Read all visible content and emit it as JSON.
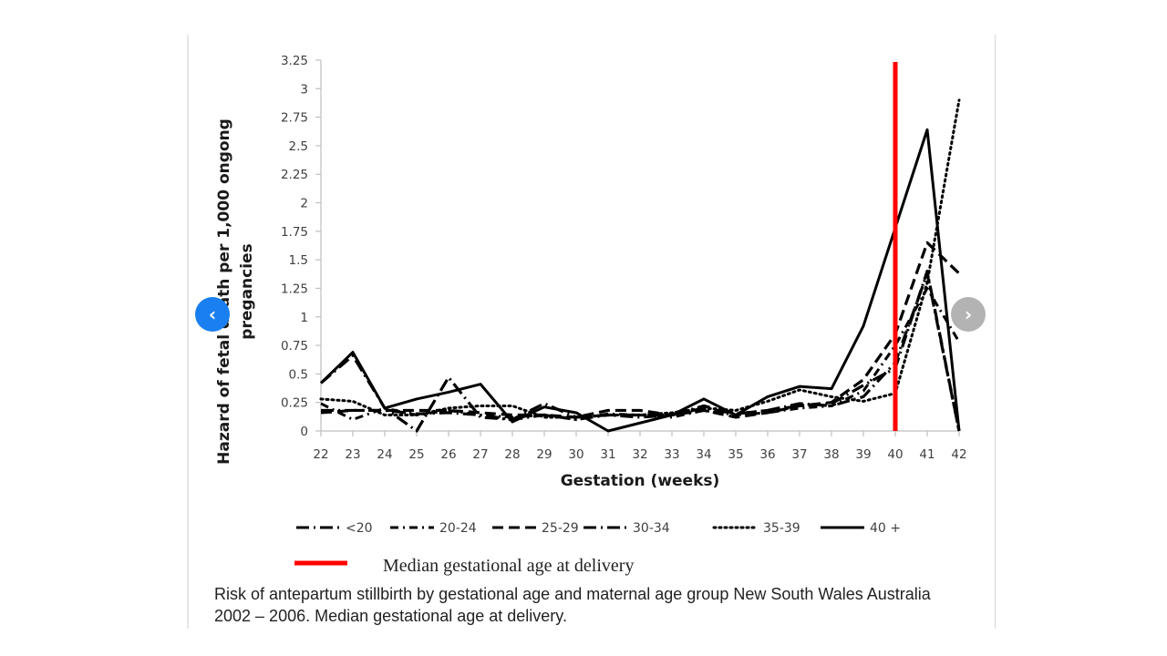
{
  "navigation": {
    "prev_icon": "‹",
    "next_icon": "›"
  },
  "caption": "Risk of antepartum stillbirth by gestational age and maternal age group New South Wales Australia 2002 – 2006. Median gestational age at delivery.",
  "chart_data": {
    "type": "line",
    "title": "",
    "xlabel": "Gestation (weeks)",
    "ylabel_line1": "Hazard of fetal death per 1,000 ongong",
    "ylabel_line2": "pregancies",
    "x": [
      22,
      23,
      24,
      25,
      26,
      27,
      28,
      29,
      30,
      31,
      32,
      33,
      34,
      35,
      36,
      37,
      38,
      39,
      40,
      41,
      42
    ],
    "xlim": [
      22,
      42
    ],
    "ylim": [
      0,
      3.25
    ],
    "yticks": [
      "0",
      "0.25",
      "0.5",
      "0.75",
      "1",
      "1.25",
      "1.5",
      "1.75",
      "2",
      "2.25",
      "2.5",
      "2.75",
      "3",
      "3.25"
    ],
    "xticks": [
      "22",
      "23",
      "24",
      "25",
      "26",
      "27",
      "28",
      "29",
      "30",
      "31",
      "32",
      "33",
      "34",
      "35",
      "36",
      "37",
      "38",
      "39",
      "40",
      "41",
      "42"
    ],
    "grid": false,
    "legend_position": "bottom",
    "series": [
      {
        "name": "<20",
        "style": "long-dash-dot",
        "values": [
          0.42,
          0.66,
          0.2,
          0.0,
          0.47,
          0.12,
          0.1,
          0.24,
          0.12,
          0.14,
          0.12,
          0.14,
          0.2,
          0.15,
          0.18,
          0.22,
          0.24,
          0.4,
          0.55,
          1.4,
          0.0
        ]
      },
      {
        "name": "20-24",
        "style": "dash-dot-dash",
        "values": [
          0.24,
          0.1,
          0.2,
          0.14,
          0.18,
          0.14,
          0.12,
          0.14,
          0.1,
          0.15,
          0.14,
          0.12,
          0.18,
          0.14,
          0.16,
          0.2,
          0.22,
          0.35,
          0.75,
          1.25,
          0.78
        ]
      },
      {
        "name": "25-29",
        "style": "dash",
        "values": [
          0.16,
          0.18,
          0.18,
          0.18,
          0.18,
          0.16,
          0.14,
          0.14,
          0.12,
          0.18,
          0.18,
          0.14,
          0.18,
          0.12,
          0.16,
          0.22,
          0.25,
          0.45,
          0.85,
          1.65,
          1.38
        ]
      },
      {
        "name": "30-34",
        "style": "long-dash-dot",
        "values": [
          0.18,
          0.18,
          0.18,
          0.15,
          0.16,
          0.14,
          0.1,
          0.14,
          0.1,
          0.14,
          0.14,
          0.14,
          0.22,
          0.15,
          0.18,
          0.24,
          0.22,
          0.3,
          0.6,
          1.38,
          0.0
        ]
      },
      {
        "name": "35-39",
        "style": "dot",
        "values": [
          0.28,
          0.26,
          0.14,
          0.14,
          0.2,
          0.22,
          0.22,
          0.12,
          0.12,
          0.14,
          0.14,
          0.16,
          0.2,
          0.18,
          0.26,
          0.36,
          0.3,
          0.26,
          0.33,
          1.3,
          2.9
        ]
      },
      {
        "name": "40 +",
        "style": "solid",
        "values": [
          0.42,
          0.69,
          0.2,
          0.28,
          0.34,
          0.41,
          0.08,
          0.21,
          0.16,
          0.0,
          0.07,
          0.14,
          0.28,
          0.14,
          0.3,
          0.39,
          0.37,
          0.92,
          1.78,
          2.64,
          0.0
        ]
      }
    ],
    "annotations": [
      {
        "type": "vline",
        "x": 40,
        "color": "#ff0000",
        "label": "Median gestational age at delivery"
      }
    ]
  }
}
